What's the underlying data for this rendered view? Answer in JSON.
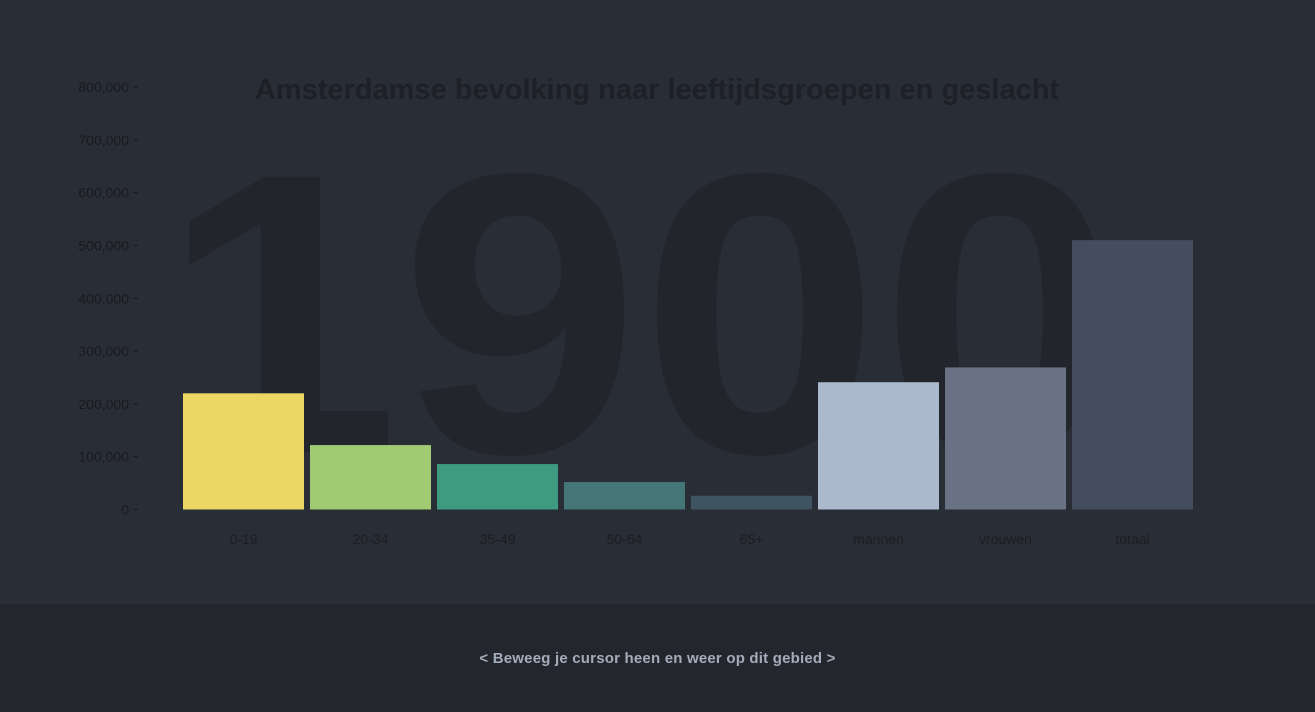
{
  "year_label": "1900",
  "hint": "< Beweeg je cursor heen en weer op dit gebied >",
  "colors": {
    "background": "#292d35",
    "footer": "#23262d",
    "watermark": "#22252b",
    "title": "#1d2026",
    "tick_text": "#181a1f",
    "category_text": "#1b1d22",
    "hint_text": "#a4acbb"
  },
  "chart_data": {
    "type": "bar",
    "title": "Amsterdamse bevolking naar leeftijdsgroepen en geslacht",
    "xlabel": "",
    "ylabel": "",
    "ylim": [
      0,
      800000
    ],
    "y_ticks": [
      0,
      100000,
      200000,
      300000,
      400000,
      500000,
      600000,
      700000,
      800000
    ],
    "y_tick_labels": [
      "0",
      "100,000",
      "200,000",
      "300,000",
      "400,000",
      "500,000",
      "600,000",
      "700,000",
      "800,000"
    ],
    "categories": [
      "0-19",
      "20-34",
      "35-49",
      "50-64",
      "65+",
      "mannen",
      "vrouwen",
      "totaal"
    ],
    "values": [
      220000,
      122000,
      86000,
      52000,
      26000,
      241000,
      269000,
      510000
    ],
    "bar_colors": [
      "#ecd762",
      "#a1cb72",
      "#3f9b80",
      "#457677",
      "#3e5462",
      "#aab9cc",
      "#6a7385",
      "#444d5d"
    ],
    "grid": false,
    "legend": "none"
  }
}
